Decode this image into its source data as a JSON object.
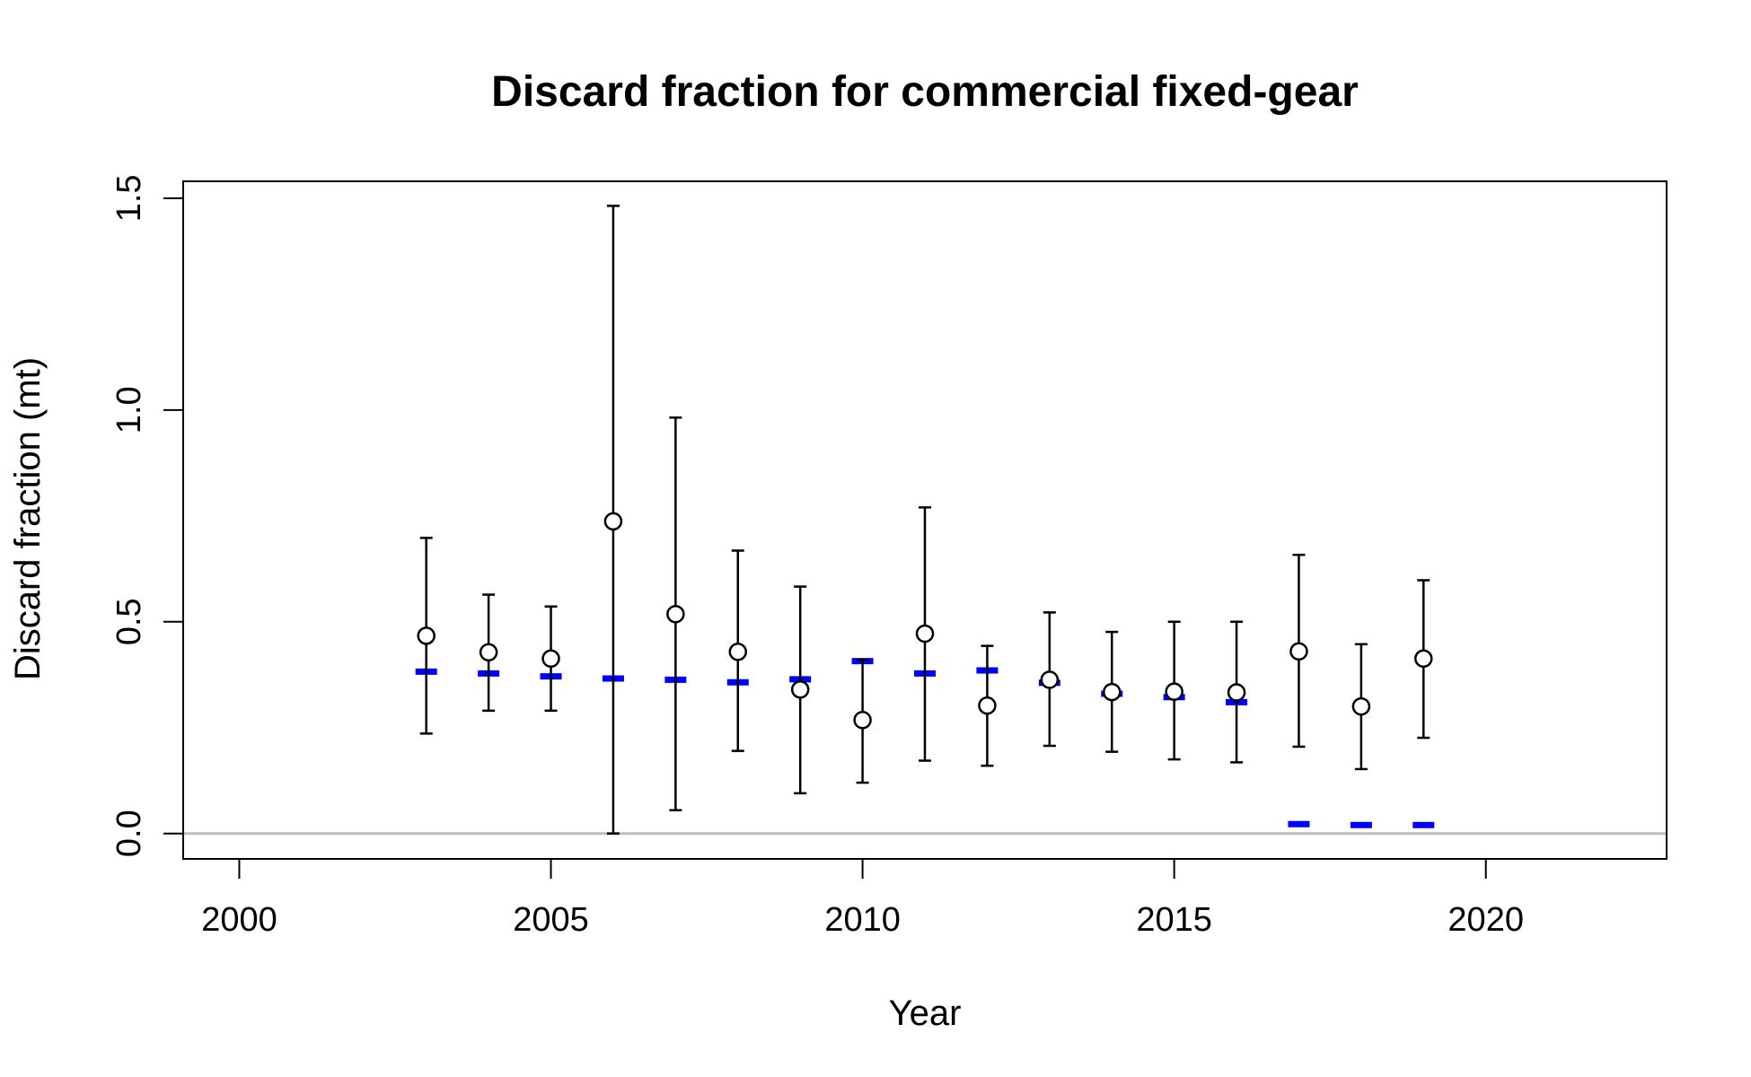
{
  "chart_data": {
    "type": "scatter",
    "title": "Discard fraction for commercial fixed-gear",
    "xlabel": "Year",
    "ylabel": "Discard fraction (mt)",
    "xlim": [
      1999.1,
      2022.9
    ],
    "ylim": [
      -0.06,
      1.54
    ],
    "x_ticks": [
      "2000",
      "2005",
      "2010",
      "2015",
      "2020"
    ],
    "y_ticks": [
      "0.0",
      "0.5",
      "1.0",
      "1.5"
    ],
    "grid": false,
    "reference_line": 0,
    "colors": {
      "observed": "#000000",
      "expected": "#0000ff",
      "reference": "#bebebe"
    },
    "series": [
      {
        "kind": "observed",
        "x": [
          2003,
          2004,
          2005,
          2006,
          2007,
          2008,
          2009,
          2010,
          2011,
          2012,
          2013,
          2014,
          2015,
          2016,
          2017,
          2018,
          2019
        ],
        "y": [
          0.467,
          0.428,
          0.413,
          0.737,
          0.518,
          0.429,
          0.34,
          0.268,
          0.472,
          0.302,
          0.363,
          0.334,
          0.335,
          0.333,
          0.43,
          0.3,
          0.413
        ],
        "lower": [
          0.236,
          0.29,
          0.29,
          0.0,
          0.055,
          0.195,
          0.095,
          0.12,
          0.172,
          0.16,
          0.207,
          0.193,
          0.175,
          0.168,
          0.205,
          0.152,
          0.226
        ],
        "upper": [
          0.698,
          0.564,
          0.536,
          1.482,
          0.982,
          0.668,
          0.583,
          0.41,
          0.77,
          0.443,
          0.522,
          0.476,
          0.5,
          0.5,
          0.658,
          0.447,
          0.598
        ]
      },
      {
        "kind": "expected",
        "x": [
          2003,
          2004,
          2005,
          2006,
          2007,
          2008,
          2009,
          2010,
          2011,
          2012,
          2013,
          2014,
          2015,
          2016,
          2017,
          2018,
          2019
        ],
        "y": [
          0.382,
          0.378,
          0.371,
          0.366,
          0.363,
          0.357,
          0.364,
          0.407,
          0.378,
          0.385,
          0.356,
          0.33,
          0.322,
          0.31,
          0.022,
          0.02,
          0.02
        ]
      }
    ]
  }
}
